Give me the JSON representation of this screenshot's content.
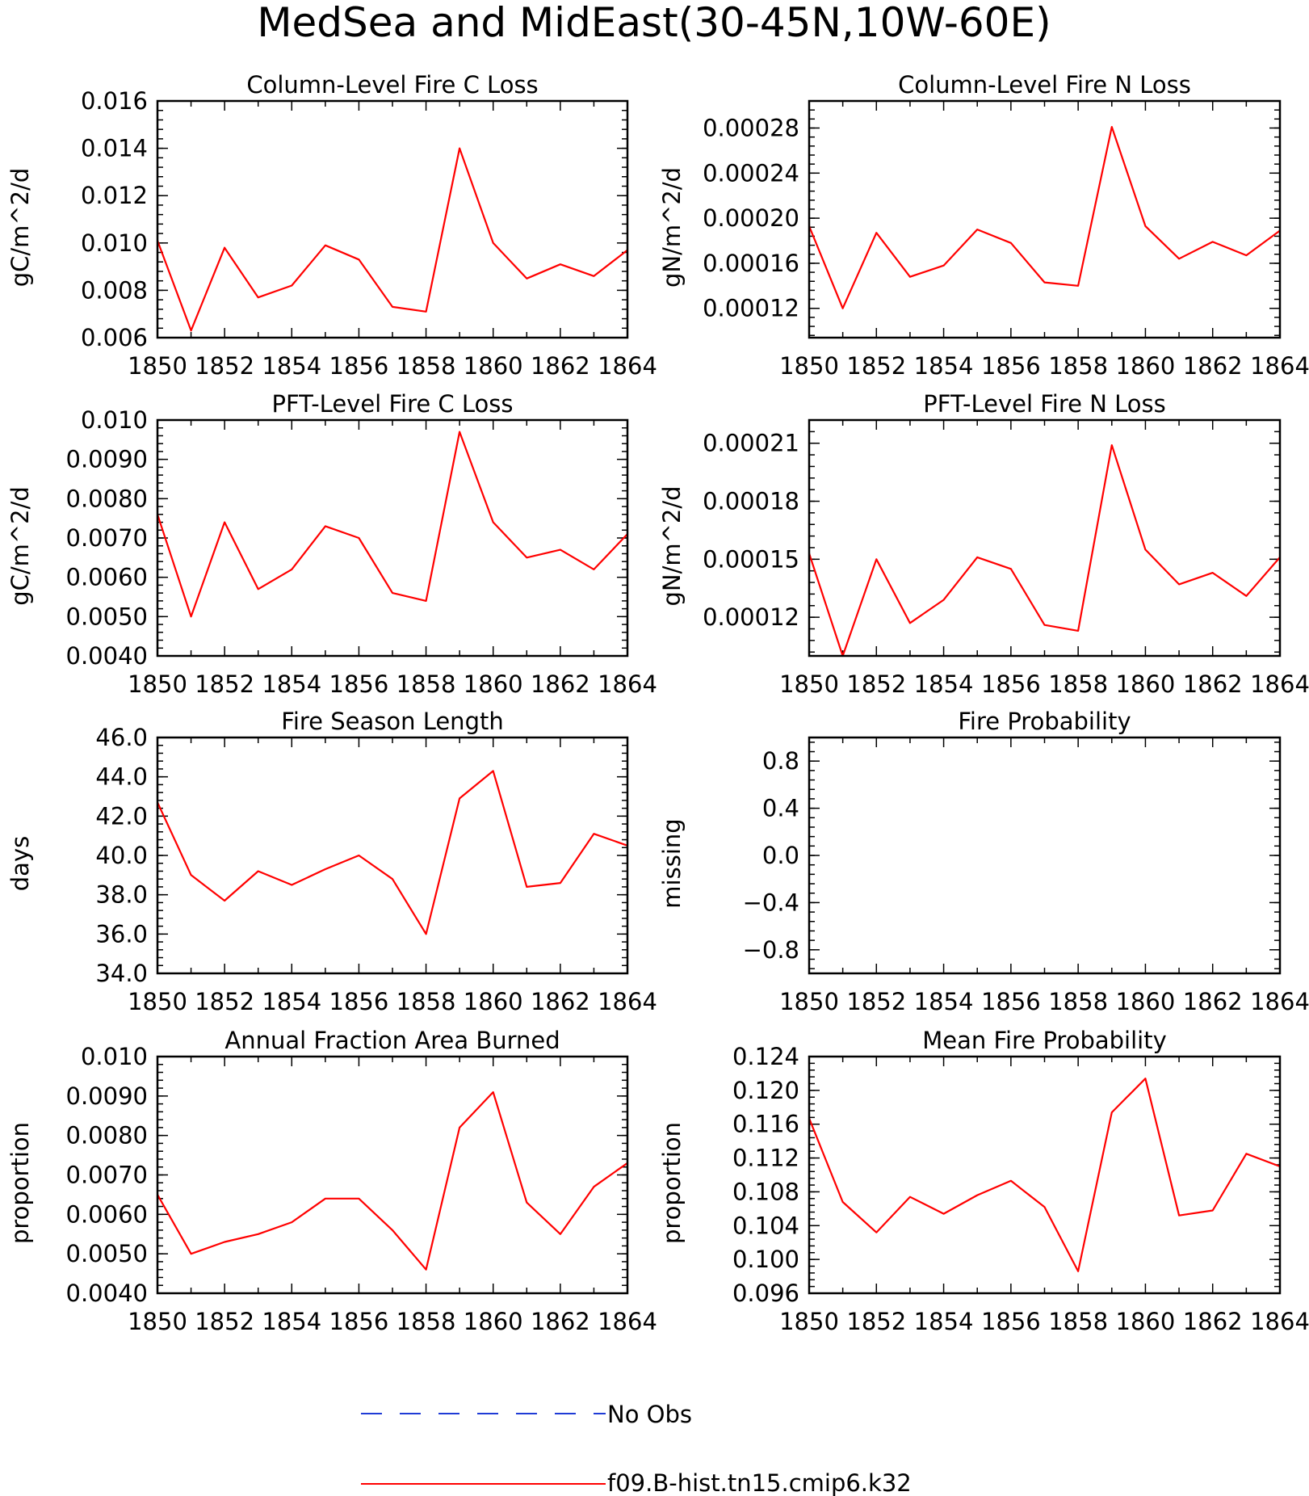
{
  "figure_title": "MedSea and MidEast(30-45N,10W-60E)",
  "legend": [
    {
      "label": "No Obs",
      "color": "#1f3bd6",
      "style": "dashed"
    },
    {
      "label": "f09.B-hist.tn15.cmip6.k32",
      "color": "#ff0000",
      "style": "solid"
    }
  ],
  "chart_data": [
    {
      "type": "line",
      "title": "Column-Level Fire C Loss",
      "ylabel": "gC/m^2/d",
      "x": [
        1850,
        1851,
        1852,
        1853,
        1854,
        1855,
        1856,
        1857,
        1858,
        1859,
        1860,
        1861,
        1862,
        1863,
        1864
      ],
      "xlim": [
        1850,
        1864
      ],
      "xticks": [
        1850,
        1852,
        1854,
        1856,
        1858,
        1860,
        1862,
        1864
      ],
      "ylim": [
        0.006,
        0.016
      ],
      "yticks": [
        0.006,
        0.008,
        0.01,
        0.012,
        0.014,
        0.016
      ],
      "ytick_labels": [
        "0.006",
        "0.008",
        "0.010",
        "0.012",
        "0.014",
        "0.016"
      ],
      "series": [
        {
          "color": "#ff0000",
          "values": [
            0.0101,
            0.0063,
            0.0098,
            0.0077,
            0.0082,
            0.0099,
            0.0093,
            0.0073,
            0.0071,
            0.014,
            0.01,
            0.0085,
            0.0091,
            0.0086,
            0.0097
          ]
        }
      ]
    },
    {
      "type": "line",
      "title": "Column-Level Fire N Loss",
      "ylabel": "gN/m^2/d",
      "x": [
        1850,
        1851,
        1852,
        1853,
        1854,
        1855,
        1856,
        1857,
        1858,
        1859,
        1860,
        1861,
        1862,
        1863,
        1864
      ],
      "xlim": [
        1850,
        1864
      ],
      "xticks": [
        1850,
        1852,
        1854,
        1856,
        1858,
        1860,
        1862,
        1864
      ],
      "ylim": [
        9.4e-05,
        0.000304
      ],
      "yticks": [
        0.00012,
        0.00016,
        0.0002,
        0.00024,
        0.00028
      ],
      "ytick_labels": [
        "0.00012",
        "0.00016",
        "0.00020",
        "0.00024",
        "0.00028"
      ],
      "series": [
        {
          "color": "#ff0000",
          "values": [
            0.000193,
            0.00012,
            0.000187,
            0.000148,
            0.000158,
            0.00019,
            0.000178,
            0.000143,
            0.00014,
            0.000281,
            0.000193,
            0.000164,
            0.000179,
            0.000167,
            0.000189
          ]
        }
      ]
    },
    {
      "type": "line",
      "title": "PFT-Level Fire C Loss",
      "ylabel": "gC/m^2/d",
      "x": [
        1850,
        1851,
        1852,
        1853,
        1854,
        1855,
        1856,
        1857,
        1858,
        1859,
        1860,
        1861,
        1862,
        1863,
        1864
      ],
      "xlim": [
        1850,
        1864
      ],
      "xticks": [
        1850,
        1852,
        1854,
        1856,
        1858,
        1860,
        1862,
        1864
      ],
      "ylim": [
        0.004,
        0.01
      ],
      "yticks": [
        0.004,
        0.005,
        0.006,
        0.007,
        0.008,
        0.009,
        0.01
      ],
      "ytick_labels": [
        "0.0040",
        "0.0050",
        "0.0060",
        "0.0070",
        "0.0080",
        "0.0090",
        "0.010"
      ],
      "series": [
        {
          "color": "#ff0000",
          "values": [
            0.0076,
            0.005,
            0.0074,
            0.0057,
            0.0062,
            0.0073,
            0.007,
            0.0056,
            0.0054,
            0.0097,
            0.0074,
            0.0065,
            0.0067,
            0.0062,
            0.0071
          ]
        }
      ]
    },
    {
      "type": "line",
      "title": "PFT-Level Fire N Loss",
      "ylabel": "gN/m^2/d",
      "x": [
        1850,
        1851,
        1852,
        1853,
        1854,
        1855,
        1856,
        1857,
        1858,
        1859,
        1860,
        1861,
        1862,
        1863,
        1864
      ],
      "xlim": [
        1850,
        1864
      ],
      "xticks": [
        1850,
        1852,
        1854,
        1856,
        1858,
        1860,
        1862,
        1864
      ],
      "ylim": [
        0.0001,
        0.000222
      ],
      "yticks": [
        0.00012,
        0.00015,
        0.00018,
        0.00021
      ],
      "ytick_labels": [
        "0.00012",
        "0.00015",
        "0.00018",
        "0.00021"
      ],
      "series": [
        {
          "color": "#ff0000",
          "values": [
            0.000153,
            0.0001,
            0.00015,
            0.000117,
            0.000129,
            0.000151,
            0.000145,
            0.000116,
            0.000113,
            0.000209,
            0.000155,
            0.000137,
            0.000143,
            0.000131,
            0.000151
          ]
        }
      ]
    },
    {
      "type": "line",
      "title": "Fire Season Length",
      "ylabel": "days",
      "x": [
        1850,
        1851,
        1852,
        1853,
        1854,
        1855,
        1856,
        1857,
        1858,
        1859,
        1860,
        1861,
        1862,
        1863,
        1864
      ],
      "xlim": [
        1850,
        1864
      ],
      "xticks": [
        1850,
        1852,
        1854,
        1856,
        1858,
        1860,
        1862,
        1864
      ],
      "ylim": [
        34,
        46
      ],
      "yticks": [
        34,
        36,
        38,
        40,
        42,
        44,
        46
      ],
      "ytick_labels": [
        "34.0",
        "36.0",
        "38.0",
        "40.0",
        "42.0",
        "44.0",
        "46.0"
      ],
      "series": [
        {
          "color": "#ff0000",
          "values": [
            42.7,
            39.0,
            37.7,
            39.2,
            38.5,
            39.3,
            40.0,
            38.8,
            36.0,
            42.9,
            44.3,
            38.4,
            38.6,
            41.1,
            40.5
          ]
        }
      ]
    },
    {
      "type": "line",
      "title": "Fire Probability",
      "ylabel": "missing",
      "x": [],
      "xlim": [
        1850,
        1864
      ],
      "xticks": [
        1850,
        1852,
        1854,
        1856,
        1858,
        1860,
        1862,
        1864
      ],
      "ylim": [
        -1.0,
        1.0
      ],
      "yticks": [
        -0.8,
        -0.4,
        0.0,
        0.4,
        0.8
      ],
      "ytick_labels": [
        "−0.8",
        "−0.4",
        "0.0",
        "0.4",
        "0.8"
      ],
      "series": []
    },
    {
      "type": "line",
      "title": "Annual Fraction Area Burned",
      "ylabel": "proportion",
      "x": [
        1850,
        1851,
        1852,
        1853,
        1854,
        1855,
        1856,
        1857,
        1858,
        1859,
        1860,
        1861,
        1862,
        1863,
        1864
      ],
      "xlim": [
        1850,
        1864
      ],
      "xticks": [
        1850,
        1852,
        1854,
        1856,
        1858,
        1860,
        1862,
        1864
      ],
      "ylim": [
        0.004,
        0.01
      ],
      "yticks": [
        0.004,
        0.005,
        0.006,
        0.007,
        0.008,
        0.009,
        0.01
      ],
      "ytick_labels": [
        "0.0040",
        "0.0050",
        "0.0060",
        "0.0070",
        "0.0080",
        "0.0090",
        "0.010"
      ],
      "series": [
        {
          "color": "#ff0000",
          "values": [
            0.0065,
            0.005,
            0.0053,
            0.0055,
            0.0058,
            0.0064,
            0.0064,
            0.0056,
            0.0046,
            0.0082,
            0.0091,
            0.0063,
            0.0055,
            0.0067,
            0.0073
          ]
        }
      ]
    },
    {
      "type": "line",
      "title": "Mean Fire Probability",
      "ylabel": "proportion",
      "x": [
        1850,
        1851,
        1852,
        1853,
        1854,
        1855,
        1856,
        1857,
        1858,
        1859,
        1860,
        1861,
        1862,
        1863,
        1864
      ],
      "xlim": [
        1850,
        1864
      ],
      "xticks": [
        1850,
        1852,
        1854,
        1856,
        1858,
        1860,
        1862,
        1864
      ],
      "ylim": [
        0.096,
        0.124
      ],
      "yticks": [
        0.096,
        0.1,
        0.104,
        0.108,
        0.112,
        0.116,
        0.12,
        0.124
      ],
      "ytick_labels": [
        "0.096",
        "0.100",
        "0.104",
        "0.108",
        "0.112",
        "0.116",
        "0.120",
        "0.124"
      ],
      "series": [
        {
          "color": "#ff0000",
          "values": [
            0.1167,
            0.1068,
            0.1032,
            0.1074,
            0.1054,
            0.1076,
            0.1093,
            0.1062,
            0.0986,
            0.1174,
            0.1214,
            0.1052,
            0.1058,
            0.1125,
            0.111
          ]
        }
      ]
    }
  ]
}
